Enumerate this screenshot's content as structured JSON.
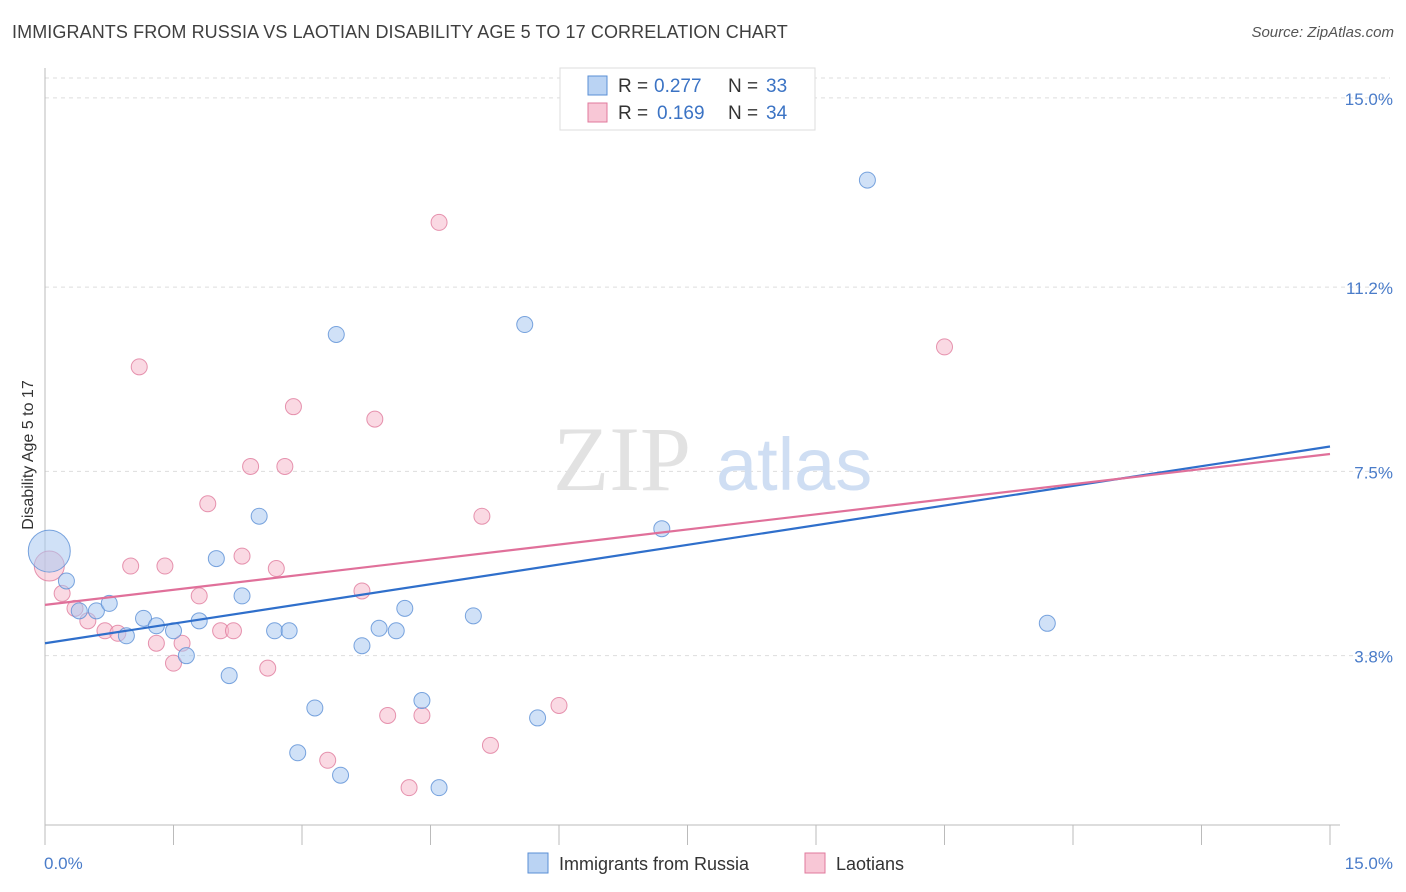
{
  "title": "IMMIGRANTS FROM RUSSIA VS LAOTIAN DISABILITY AGE 5 TO 17 CORRELATION CHART",
  "source": "Source: ZipAtlas.com",
  "watermark": {
    "zip": "ZIP",
    "atlas": "atlas"
  },
  "colors": {
    "russia_fill": "#a9c8f0",
    "russia_stroke": "#5a8fd6",
    "russia_line": "#2f6fcb",
    "laotian_fill": "#f6b9cc",
    "laotian_stroke": "#e07a9c",
    "laotian_line": "#e0709a",
    "grid": "#dddddd",
    "tick_label": "#4a7cc9"
  },
  "legend": {
    "r_label": "R =",
    "n_label": "N =",
    "rows": [
      {
        "r": "0.277",
        "n": "33"
      },
      {
        "r": "0.169",
        "n": "34"
      }
    ]
  },
  "chart_data": {
    "type": "scatter",
    "title": "IMMIGRANTS FROM RUSSIA VS LAOTIAN DISABILITY AGE 5 TO 17 CORRELATION CHART",
    "xlabel": "",
    "ylabel": "Disability Age 5 to 17",
    "xlim": [
      0,
      15
    ],
    "ylim": [
      0.4,
      15.4
    ],
    "x_tick_labels": [
      "0.0%",
      "15.0%"
    ],
    "y_ticks": [
      3.8,
      7.5,
      11.2,
      15.0
    ],
    "y_tick_labels": [
      "3.8%",
      "7.5%",
      "11.2%",
      "15.0%"
    ],
    "grid": true,
    "legend_position": "top-center",
    "series": [
      {
        "name": "Immigrants from Russia",
        "r": 0.277,
        "n": 33,
        "trend": [
          [
            0,
            4.05
          ],
          [
            15,
            8.0
          ]
        ],
        "points": [
          [
            0.05,
            5.9,
            3
          ],
          [
            0.25,
            5.3,
            1
          ],
          [
            0.4,
            4.7,
            1
          ],
          [
            0.6,
            4.7,
            1
          ],
          [
            0.75,
            4.85,
            1
          ],
          [
            0.95,
            4.2,
            1
          ],
          [
            1.15,
            4.55,
            1
          ],
          [
            1.3,
            4.4,
            1
          ],
          [
            1.5,
            4.3,
            1
          ],
          [
            1.65,
            3.8,
            1
          ],
          [
            1.8,
            4.5,
            1
          ],
          [
            2.0,
            5.75,
            1
          ],
          [
            2.15,
            3.4,
            1
          ],
          [
            2.3,
            5.0,
            1
          ],
          [
            2.5,
            6.6,
            1
          ],
          [
            2.68,
            4.3,
            1
          ],
          [
            2.85,
            4.3,
            1
          ],
          [
            3.15,
            2.75,
            1
          ],
          [
            2.95,
            1.85,
            1
          ],
          [
            3.4,
            10.25,
            1
          ],
          [
            3.45,
            1.4,
            1
          ],
          [
            3.7,
            4.0,
            1
          ],
          [
            3.9,
            4.35,
            1
          ],
          [
            4.1,
            4.3,
            1
          ],
          [
            4.2,
            4.75,
            1
          ],
          [
            4.4,
            2.9,
            1
          ],
          [
            4.6,
            1.15,
            1
          ],
          [
            5.0,
            4.6,
            1
          ],
          [
            5.6,
            10.45,
            1
          ],
          [
            5.75,
            2.55,
            1
          ],
          [
            7.2,
            6.35,
            1
          ],
          [
            9.6,
            13.35,
            1
          ],
          [
            11.7,
            4.45,
            1
          ]
        ]
      },
      {
        "name": "Laotians",
        "r": 0.169,
        "n": 34,
        "trend": [
          [
            0,
            4.82
          ],
          [
            15,
            7.85
          ]
        ],
        "points": [
          [
            0.05,
            5.6,
            2
          ],
          [
            0.2,
            5.05,
            1
          ],
          [
            0.35,
            4.75,
            1
          ],
          [
            0.5,
            4.5,
            1
          ],
          [
            0.7,
            4.3,
            1
          ],
          [
            0.85,
            4.25,
            1
          ],
          [
            1.0,
            5.6,
            1
          ],
          [
            1.1,
            9.6,
            1
          ],
          [
            1.3,
            4.05,
            1
          ],
          [
            1.4,
            5.6,
            1
          ],
          [
            1.5,
            3.65,
            1
          ],
          [
            1.6,
            4.05,
            1
          ],
          [
            1.8,
            5.0,
            1
          ],
          [
            1.9,
            6.85,
            1
          ],
          [
            2.05,
            4.3,
            1
          ],
          [
            2.2,
            4.3,
            1
          ],
          [
            2.3,
            5.8,
            1
          ],
          [
            2.4,
            7.6,
            1
          ],
          [
            2.6,
            3.55,
            1
          ],
          [
            2.7,
            5.55,
            1
          ],
          [
            2.8,
            7.6,
            1
          ],
          [
            2.9,
            8.8,
            1
          ],
          [
            3.3,
            1.7,
            1
          ],
          [
            3.7,
            5.1,
            1
          ],
          [
            3.85,
            8.55,
            1
          ],
          [
            4.0,
            2.6,
            1
          ],
          [
            4.25,
            1.15,
            1
          ],
          [
            4.4,
            2.6,
            1
          ],
          [
            4.6,
            12.5,
            1
          ],
          [
            5.1,
            6.6,
            1
          ],
          [
            5.2,
            2.0,
            1
          ],
          [
            6.0,
            2.8,
            1
          ],
          [
            10.5,
            10.0,
            1
          ]
        ]
      }
    ]
  }
}
